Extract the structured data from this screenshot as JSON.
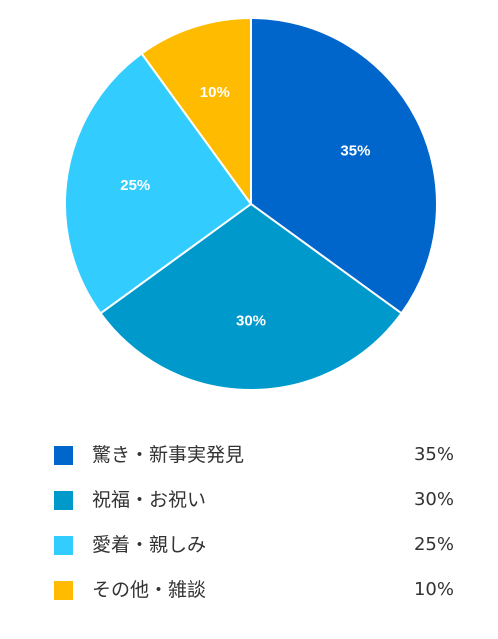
{
  "chart_data": {
    "type": "pie",
    "title": "",
    "categories": [
      "驚き・新事実発見",
      "祝福・お祝い",
      "愛着・親しみ",
      "その他・雑談"
    ],
    "values": [
      35,
      30,
      25,
      10
    ],
    "slice_labels": [
      "35%",
      "30%",
      "25%",
      "10%"
    ],
    "legend_values": [
      "35%",
      "30%",
      "25%",
      "10%"
    ],
    "colors": [
      "#0066CC",
      "#0099CC",
      "#33CCFF",
      "#FFBB00"
    ],
    "start_angle_deg": 0,
    "direction": "clockwise",
    "legend_placement": "bottom"
  }
}
